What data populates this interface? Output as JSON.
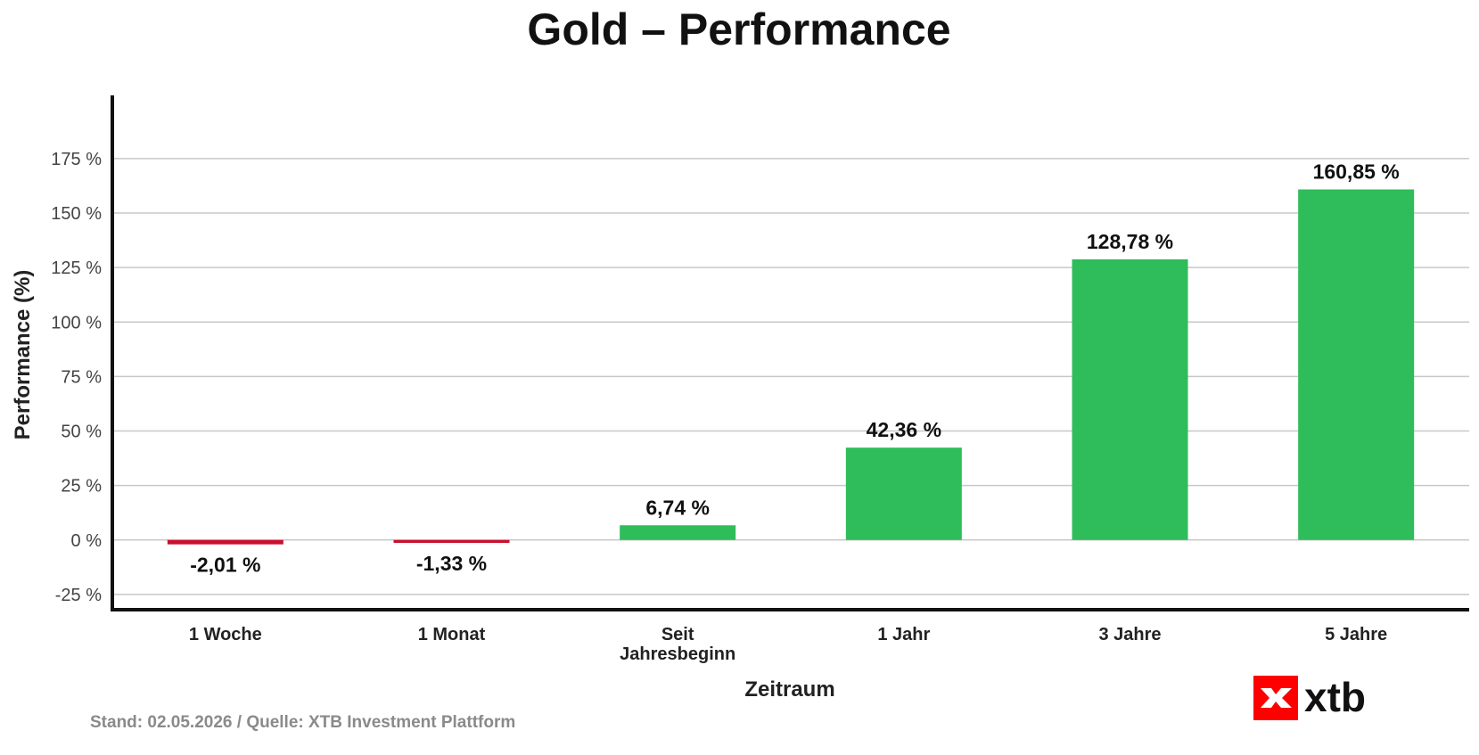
{
  "chart_data": {
    "type": "bar",
    "title": "Gold – Performance",
    "xlabel": "Zeitraum",
    "ylabel": "Performance (%)",
    "categories": [
      [
        "1 Woche"
      ],
      [
        "1 Monat"
      ],
      [
        "Seit",
        "Jahresbeginn"
      ],
      [
        "1 Jahr"
      ],
      [
        "3 Jahre"
      ],
      [
        "5 Jahre"
      ]
    ],
    "values": [
      -2.01,
      -1.33,
      6.74,
      42.36,
      128.78,
      160.85
    ],
    "value_labels": [
      "-2,01 %",
      "-1,33 %",
      "6,74 %",
      "42,36 %",
      "128,78 %",
      "160,85 %"
    ],
    "ylim": [
      -32,
      204
    ],
    "yticks": [
      -25,
      0,
      25,
      50,
      75,
      100,
      125,
      150,
      175
    ],
    "ytick_labels": [
      "-25 %",
      "0 %",
      "25 %",
      "50 %",
      "75 %",
      "100 %",
      "125 %",
      "150 %",
      "175 %"
    ],
    "grid": "horizontal",
    "colors": {
      "positive": "#2ebd5a",
      "negative": "#c8102e",
      "grid": "#c8c8c8",
      "axis": "#111111"
    }
  },
  "footer": {
    "source": "Stand: 02.05.2026 / Quelle: XTB Investment Plattform"
  },
  "logo": {
    "text": "xtb",
    "color": "#ff0000",
    "icon": "xtb-x-icon"
  }
}
